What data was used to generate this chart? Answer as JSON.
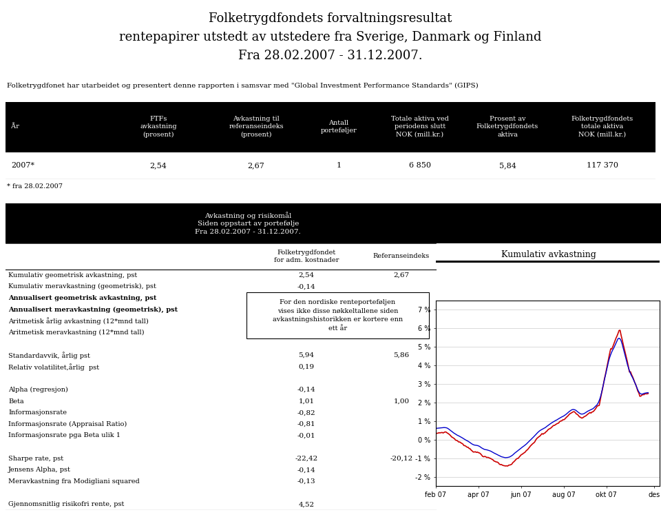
{
  "title_line1": "Folketrygdfondets forvaltningsresultat",
  "title_line2": "rentepapirer utstedt av utstedere fra Sverige, Danmark og Finland",
  "title_line3": "Fra 28.02.2007 - 31.12.2007.",
  "gips_text": "Folketrygdfonet har utarbeidet og presentert denne rapporten i samsvar med \"Global Investment Performance Standards\" (GIPS)",
  "table1_footnote": "* fra 28.02.2007",
  "table2_title": "Avkastning og risikomål\nSiden oppstart av portefølje\nFra 28.02.2007 - 31.12.2007.",
  "table2_col1": "Folketrygdfondet\nfor adm. kostnader",
  "table2_col2": "Referanseindeks",
  "table2_rows": [
    {
      "label": "Kumulativ geometrisk avkastning, pst",
      "ftf": "2,54",
      "ref": "2,67",
      "bold": false
    },
    {
      "label": "Kumulativ meravkastning (geometrisk), pst",
      "ftf": "-0,14",
      "ref": "",
      "bold": false
    },
    {
      "label": "Annualisert geometrisk avkastning, pst",
      "ftf": "",
      "ref": "",
      "bold": true
    },
    {
      "label": "Annualisert meravkastning (geometrisk), pst",
      "ftf": "",
      "ref": "",
      "bold": true
    },
    {
      "label": "Aritmetisk årlig avkastning (12*mnd tall)",
      "ftf": "",
      "ref": "",
      "bold": false
    },
    {
      "label": "Aritmetisk meravkastning (12*mnd tall)",
      "ftf": "",
      "ref": "",
      "bold": false
    },
    {
      "label": "",
      "ftf": "",
      "ref": "",
      "bold": false
    },
    {
      "label": "Standardavvik, årlig pst",
      "ftf": "5,94",
      "ref": "5,86",
      "bold": false
    },
    {
      "label": "Relativ volatilitet,årlig  pst",
      "ftf": "0,19",
      "ref": "",
      "bold": false
    },
    {
      "label": "",
      "ftf": "",
      "ref": "",
      "bold": false
    },
    {
      "label": "Alpha (regresjon)",
      "ftf": "-0,14",
      "ref": "",
      "bold": false
    },
    {
      "label": "Beta",
      "ftf": "1,01",
      "ref": "1,00",
      "bold": false
    },
    {
      "label": "Informasjonsrate",
      "ftf": "-0,82",
      "ref": "",
      "bold": false
    },
    {
      "label": "Informasjonsrate (Appraisal Ratio)",
      "ftf": "-0,81",
      "ref": "",
      "bold": false
    },
    {
      "label": "Informasjonsrate pga Beta ulik 1",
      "ftf": "-0,01",
      "ref": "",
      "bold": false
    },
    {
      "label": "",
      "ftf": "",
      "ref": "",
      "bold": false
    },
    {
      "label": "Sharpe rate, pst",
      "ftf": "-22,42",
      "ref": "-20,12",
      "bold": false
    },
    {
      "label": "Jensens Alpha, pst",
      "ftf": "-0,14",
      "ref": "",
      "bold": false
    },
    {
      "label": "Meravkastning fra Modigliani squared",
      "ftf": "-0,13",
      "ref": "",
      "bold": false
    },
    {
      "label": "",
      "ftf": "",
      "ref": "",
      "bold": false
    },
    {
      "label": "Gjennomsnitlig risikofri rente, pst",
      "ftf": "4,52",
      "ref": "",
      "bold": false
    }
  ],
  "note_text": "For den nordiske renteporteføljen\nvises ikke disse nøkkeltallene siden\navkastningshistorikken er kortere enn\nett år",
  "chart_title": "Kumulativ avkastning",
  "chart_ytick_vals": [
    7,
    6,
    5,
    4,
    3,
    2,
    1,
    0,
    -1,
    -2
  ],
  "chart_ytick_labels": [
    "7 %",
    "6 %",
    "5 %",
    "4 %",
    "3 %",
    "2 %",
    "1 %",
    "0 %",
    "-1 %",
    "-2 %"
  ],
  "chart_xtick_labels": [
    "feb 07",
    "apr 07",
    "jun 07",
    "aug 07",
    "okt 07",
    "des"
  ],
  "chart_ftf_color": "#0000cc",
  "chart_ref_color": "#cc0000",
  "bg_color": "#ffffff",
  "header_bg": "#000000",
  "header_fg": "#ffffff"
}
